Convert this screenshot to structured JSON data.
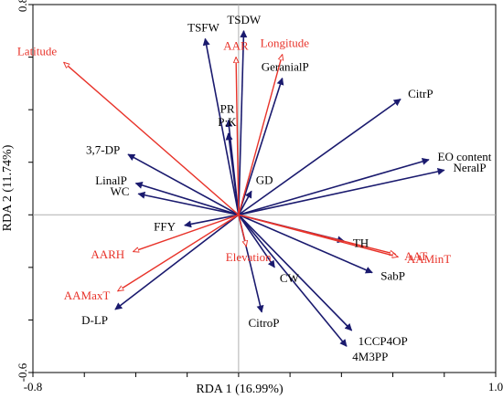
{
  "chart_data": {
    "type": "scatter",
    "subtype": "rda-biplot",
    "title": "",
    "xlabel": "RDA 1 (16.99%)",
    "ylabel": "RDA 2 (11.74%)",
    "xlim": [
      -0.8,
      1.0
    ],
    "ylim": [
      -0.6,
      0.8
    ],
    "x_tick_labels": [
      {
        "value": -0.8,
        "label": "-0.8"
      },
      {
        "value": 1.0,
        "label": "1.0"
      }
    ],
    "y_tick_labels": [
      {
        "value": 0.8,
        "label": "0.8"
      },
      {
        "value": -0.6,
        "label": "-0.6"
      }
    ],
    "x_minor_ticks": [
      -0.8,
      -0.6,
      -0.4,
      -0.2,
      0.0,
      0.2,
      0.4,
      0.6,
      0.8,
      1.0
    ],
    "y_minor_ticks": [
      -0.6,
      -0.4,
      -0.2,
      0.0,
      0.2,
      0.4,
      0.6,
      0.8
    ],
    "zero_lines": true,
    "grid": false,
    "colors": {
      "response": "#1a1a6e",
      "explanatory": "#e8332a"
    },
    "response_vectors": [
      {
        "label": "TSFW",
        "x": -0.13,
        "y": 0.67
      },
      {
        "label": "TSDW",
        "x": 0.02,
        "y": 0.7
      },
      {
        "label": "PR",
        "x": -0.04,
        "y": 0.36
      },
      {
        "label": "P:K",
        "x": -0.04,
        "y": 0.31
      },
      {
        "label": "GeranialP",
        "x": 0.17,
        "y": 0.52
      },
      {
        "label": "CitrP",
        "x": 0.63,
        "y": 0.44
      },
      {
        "label": "3,7-DP",
        "x": -0.43,
        "y": 0.23
      },
      {
        "label": "LinalP",
        "x": -0.4,
        "y": 0.12
      },
      {
        "label": "WC",
        "x": -0.39,
        "y": 0.08
      },
      {
        "label": "FFY",
        "x": -0.21,
        "y": -0.04
      },
      {
        "label": "GD",
        "x": 0.05,
        "y": 0.09
      },
      {
        "label": "EO content",
        "x": 0.74,
        "y": 0.21
      },
      {
        "label": "NeralP",
        "x": 0.8,
        "y": 0.17
      },
      {
        "label": "TH",
        "x": 0.41,
        "y": -0.1
      },
      {
        "label": "SabP",
        "x": 0.52,
        "y": -0.22
      },
      {
        "label": "CW",
        "x": 0.14,
        "y": -0.2
      },
      {
        "label": "CitroP",
        "x": 0.09,
        "y": -0.37
      },
      {
        "label": "1CCP4OP",
        "x": 0.44,
        "y": -0.44
      },
      {
        "label": "4M3PP",
        "x": 0.42,
        "y": -0.5
      },
      {
        "label": "D-LP",
        "x": -0.48,
        "y": -0.36
      }
    ],
    "explanatory_vectors": [
      {
        "label": "Latitude",
        "x": -0.68,
        "y": 0.58
      },
      {
        "label": "AAR",
        "x": -0.01,
        "y": 0.6
      },
      {
        "label": "Longitude",
        "x": 0.17,
        "y": 0.61
      },
      {
        "label": "AARH",
        "x": -0.41,
        "y": -0.14
      },
      {
        "label": "AAMaxT",
        "x": -0.47,
        "y": -0.29
      },
      {
        "label": "Elevation",
        "x": 0.03,
        "y": -0.12
      },
      {
        "label": "AAT",
        "x": 0.61,
        "y": -0.15
      },
      {
        "label": "AAMinT",
        "x": 0.62,
        "y": -0.16
      }
    ]
  }
}
